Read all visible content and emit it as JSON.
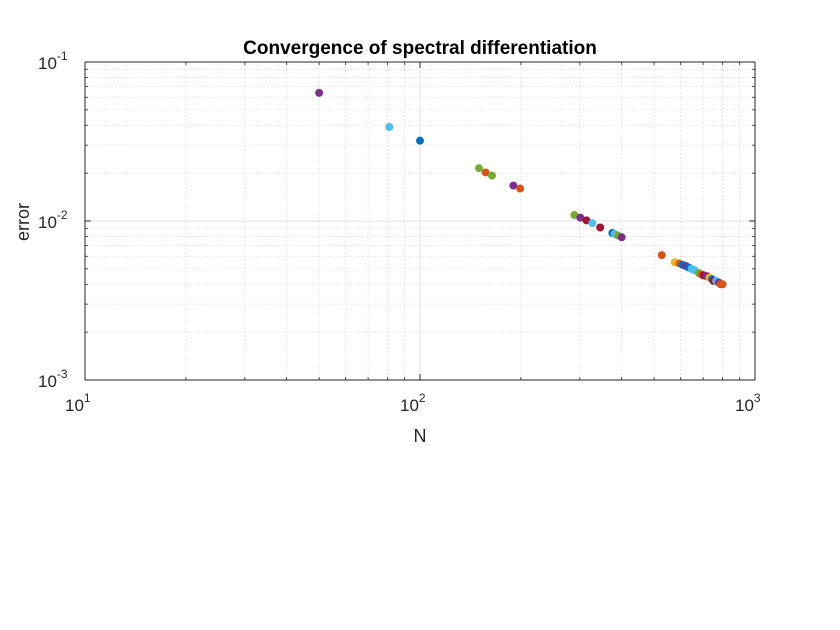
{
  "chart_data": {
    "type": "scatter",
    "title": "Convergence of spectral differentiation",
    "xlabel": "N",
    "ylabel": "error",
    "xscale": "log",
    "yscale": "log",
    "xlim": [
      10,
      1000
    ],
    "ylim": [
      0.001,
      0.1
    ],
    "grid": true,
    "minor_grid": true,
    "x_ticks": [
      {
        "base": "10",
        "exp": "1",
        "value": 10
      },
      {
        "base": "10",
        "exp": "2",
        "value": 100
      },
      {
        "base": "10",
        "exp": "3",
        "value": 1000
      }
    ],
    "y_ticks": [
      {
        "base": "10",
        "exp": "-3",
        "value": 0.001
      },
      {
        "base": "10",
        "exp": "-2",
        "value": 0.01
      },
      {
        "base": "10",
        "exp": "-1",
        "value": 0.1
      }
    ],
    "palette": [
      "#0072BD",
      "#D95319",
      "#EDB120",
      "#7E2F8E",
      "#77AC30",
      "#4DBEEE",
      "#A2142F"
    ],
    "points": [
      {
        "x": 50,
        "y": 0.064,
        "color": "#7E2F8E"
      },
      {
        "x": 81,
        "y": 0.039,
        "color": "#4DBEEE"
      },
      {
        "x": 100,
        "y": 0.032,
        "color": "#0072BD"
      },
      {
        "x": 150,
        "y": 0.0215,
        "color": "#77AC30"
      },
      {
        "x": 157,
        "y": 0.0202,
        "color": "#D95319"
      },
      {
        "x": 164,
        "y": 0.0193,
        "color": "#77AC30"
      },
      {
        "x": 190,
        "y": 0.0167,
        "color": "#7E2F8E"
      },
      {
        "x": 199,
        "y": 0.016,
        "color": "#D95319"
      },
      {
        "x": 289,
        "y": 0.0109,
        "color": "#77AC30"
      },
      {
        "x": 301,
        "y": 0.0105,
        "color": "#7E2F8E"
      },
      {
        "x": 314,
        "y": 0.0101,
        "color": "#A2142F"
      },
      {
        "x": 327,
        "y": 0.0097,
        "color": "#4DBEEE"
      },
      {
        "x": 345,
        "y": 0.0091,
        "color": "#A2142F"
      },
      {
        "x": 375,
        "y": 0.0084,
        "color": "#0072BD"
      },
      {
        "x": 381,
        "y": 0.0083,
        "color": "#4DBEEE"
      },
      {
        "x": 390,
        "y": 0.0081,
        "color": "#77AC30"
      },
      {
        "x": 400,
        "y": 0.0079,
        "color": "#7E2F8E"
      },
      {
        "x": 527,
        "y": 0.0061,
        "color": "#D95319"
      },
      {
        "x": 576,
        "y": 0.0055,
        "color": "#EDB120"
      },
      {
        "x": 595,
        "y": 0.0054,
        "color": "#D95319"
      },
      {
        "x": 608,
        "y": 0.0053,
        "color": "#0072BD"
      },
      {
        "x": 623,
        "y": 0.0052,
        "color": "#7E2F8E"
      },
      {
        "x": 634,
        "y": 0.0051,
        "color": "#0072BD"
      },
      {
        "x": 647,
        "y": 0.005,
        "color": "#4DBEEE"
      },
      {
        "x": 660,
        "y": 0.0049,
        "color": "#4DBEEE"
      },
      {
        "x": 680,
        "y": 0.0047,
        "color": "#77AC30"
      },
      {
        "x": 694,
        "y": 0.0046,
        "color": "#D95319"
      },
      {
        "x": 703,
        "y": 0.00455,
        "color": "#A2142F"
      },
      {
        "x": 717,
        "y": 0.0045,
        "color": "#7E2F8E"
      },
      {
        "x": 731,
        "y": 0.0044,
        "color": "#EDB120"
      },
      {
        "x": 745,
        "y": 0.0043,
        "color": "#0072BD"
      },
      {
        "x": 752,
        "y": 0.0042,
        "color": "#A2142F"
      },
      {
        "x": 766,
        "y": 0.0042,
        "color": "#4DBEEE"
      },
      {
        "x": 780,
        "y": 0.0041,
        "color": "#7E2F8E"
      },
      {
        "x": 790,
        "y": 0.004,
        "color": "#D95319"
      },
      {
        "x": 800,
        "y": 0.004,
        "color": "#D95319"
      }
    ]
  }
}
